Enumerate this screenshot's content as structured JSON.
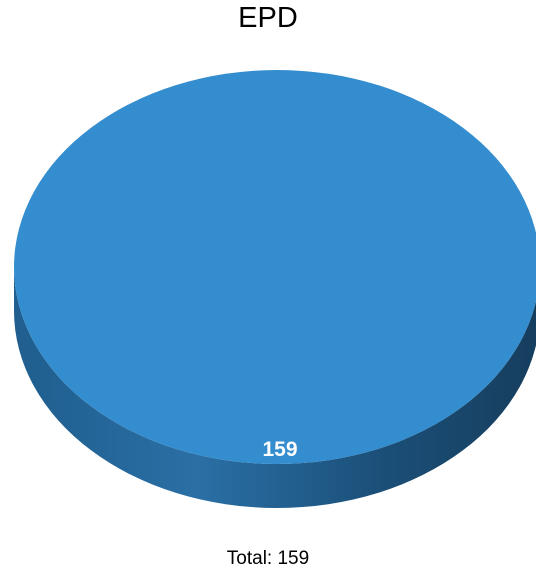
{
  "chart_data": {
    "type": "pie",
    "title": "EPD",
    "slices": [
      {
        "label": "",
        "value": 159,
        "color": "#338dce"
      }
    ],
    "total_text": "Total: 159",
    "style": "3d"
  }
}
